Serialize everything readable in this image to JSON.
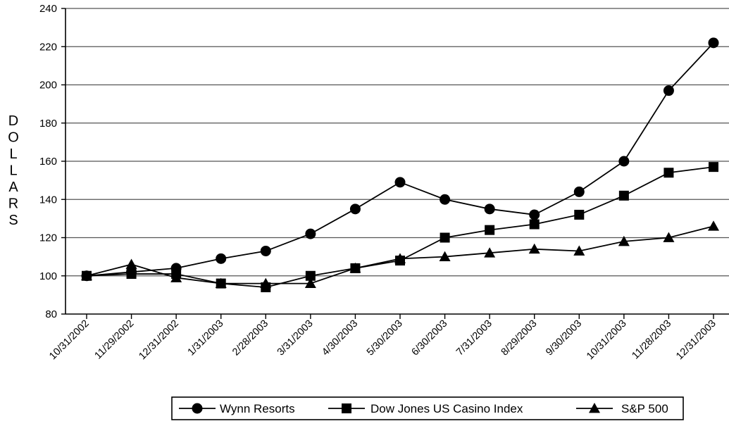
{
  "chart_data": {
    "type": "line",
    "title": "",
    "xlabel": "",
    "ylabel": "DOLLARS",
    "ylim": [
      80,
      240
    ],
    "yticks": [
      80,
      100,
      120,
      140,
      160,
      180,
      200,
      220,
      240
    ],
    "grid": true,
    "legend_position": "bottom-center",
    "categories": [
      "10/31/2002",
      "11/29/2002",
      "12/31/2002",
      "1/31/2003",
      "2/28/2003",
      "3/31/2003",
      "4/30/2003",
      "5/30/2003",
      "6/30/2003",
      "7/31/2003",
      "8/29/2003",
      "9/30/2003",
      "10/31/2003",
      "11/28/2003",
      "12/31/2003"
    ],
    "series": [
      {
        "name": "Wynn Resorts",
        "marker": "circle",
        "values": [
          100,
          102,
          104,
          109,
          113,
          122,
          135,
          149,
          140,
          135,
          132,
          144,
          160,
          197,
          222
        ]
      },
      {
        "name": "Dow Jones US Casino Index",
        "marker": "square",
        "values": [
          100,
          101,
          101,
          96,
          94,
          100,
          104,
          108,
          120,
          124,
          127,
          132,
          142,
          154,
          157
        ]
      },
      {
        "name": "S&P 500",
        "marker": "triangle",
        "values": [
          100,
          106,
          99,
          96,
          96,
          96,
          104,
          109,
          110,
          112,
          114,
          113,
          118,
          120,
          126
        ]
      }
    ]
  }
}
